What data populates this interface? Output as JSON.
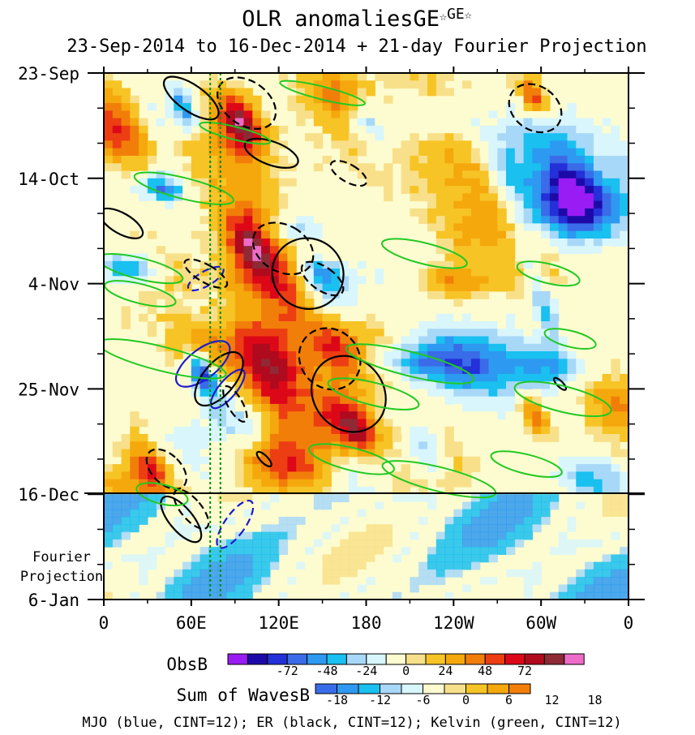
{
  "chart_data": {
    "type": "heatmap",
    "title": "OLR anomaliesGE",
    "title_sup": "GE",
    "star": "☆",
    "subtitle": "23-Sep-2014 to 16-Dec-2014 + 21-day Fourier Projection",
    "x_ticks": [
      {
        "lon": 0,
        "label": "0"
      },
      {
        "lon": 60,
        "label": "60E"
      },
      {
        "lon": 120,
        "label": "120E"
      },
      {
        "lon": 180,
        "label": "180"
      },
      {
        "lon": 240,
        "label": "120W"
      },
      {
        "lon": 300,
        "label": "60W"
      },
      {
        "lon": 360,
        "label": "0"
      }
    ],
    "x_range": [
      0,
      360
    ],
    "y_range_days": [
      0,
      105
    ],
    "y_ticks": [
      {
        "day": 0,
        "label": "23-Sep"
      },
      {
        "day": 21,
        "label": "14-Oct"
      },
      {
        "day": 42,
        "label": "4-Nov"
      },
      {
        "day": 63,
        "label": "25-Nov"
      },
      {
        "day": 84,
        "label": "16-Dec"
      },
      {
        "day": 105,
        "label": "6-Jan"
      }
    ],
    "observation_end_day": 84,
    "projection_label_1": "Fourier",
    "projection_label_2": "Projection",
    "reference_lines_lon": [
      73,
      80
    ],
    "legend_obs": {
      "label": "ObsB",
      "ticks": [
        "-72",
        "-48",
        "-24",
        "0",
        "24",
        "48",
        "72"
      ],
      "colors": [
        "#9a1cf5",
        "#1c0aa8",
        "#2430d8",
        "#3a6be8",
        "#2d99f0",
        "#19c0f0",
        "#a8d8f8",
        "#d8f6fc",
        "#fdfcd0",
        "#f8e08a",
        "#f7c426",
        "#f5a80c",
        "#f27e0a",
        "#ec3e12",
        "#dc0818",
        "#b00a1e",
        "#8e2a36",
        "#ec6cc8"
      ]
    },
    "legend_waves": {
      "label": "Sum of WavesB",
      "ticks": [
        "-18",
        "-12",
        "-6",
        "0",
        "6",
        "12",
        "18"
      ],
      "colors": [
        "#3a6be8",
        "#2d99f0",
        "#19c0f0",
        "#a8d8f8",
        "#d8f6fc",
        "#fdfcd0",
        "#f8e08a",
        "#f7c426",
        "#f5a80c",
        "#f27e0a"
      ]
    },
    "contour_note": "MJO (blue, CINT=12); ER (black, CINT=12); Kelvin (green, CINT=12)",
    "series": [
      {
        "name": "MJO",
        "color": "#1a1ad0",
        "contours": [
          {
            "lon": 68,
            "day": 58,
            "rx": 10,
            "ry": 4,
            "rot": 52,
            "dashed": false
          },
          {
            "lon": 85,
            "day": 63,
            "rx": 6,
            "ry": 3,
            "rot": 40,
            "dashed": false
          },
          {
            "lon": 70,
            "day": 41,
            "rx": 5,
            "ry": 2.5,
            "rot": 60,
            "dashed": true
          },
          {
            "lon": 90,
            "day": 90,
            "rx": 7,
            "ry": 3.5,
            "rot": 35,
            "dashed": true
          }
        ]
      },
      {
        "name": "ER",
        "color": "#000000",
        "contours": [
          {
            "lon": 60,
            "day": 5,
            "rx": 9,
            "ry": 4,
            "rot": -55,
            "dashed": false
          },
          {
            "lon": 98,
            "day": 6,
            "rx": 15,
            "ry": 4,
            "rot": -55,
            "dashed": true
          },
          {
            "lon": 115,
            "day": 16,
            "rx": 8,
            "ry": 3.5,
            "rot": -70,
            "dashed": false
          },
          {
            "lon": 168,
            "day": 20,
            "rx": 6,
            "ry": 2.5,
            "rot": -60,
            "dashed": true
          },
          {
            "lon": 12,
            "day": 30,
            "rx": 7,
            "ry": 3,
            "rot": -60,
            "dashed": false
          },
          {
            "lon": 123,
            "day": 35,
            "rx": 16,
            "ry": 4,
            "rot": -60,
            "dashed": true
          },
          {
            "lon": 140,
            "day": 40,
            "rx": 24,
            "ry": 4.5,
            "rot": -52,
            "dashed": false
          },
          {
            "lon": 150,
            "day": 41,
            "rx": 8,
            "ry": 3,
            "rot": -55,
            "dashed": true
          },
          {
            "lon": 70,
            "day": 40,
            "rx": 6,
            "ry": 3,
            "rot": -60,
            "dashed": true
          },
          {
            "lon": 155,
            "day": 57,
            "rx": 20,
            "ry": 4,
            "rot": -45,
            "dashed": true
          },
          {
            "lon": 168,
            "day": 64,
            "rx": 24,
            "ry": 5,
            "rot": -40,
            "dashed": false
          },
          {
            "lon": 79,
            "day": 61,
            "rx": 11,
            "ry": 4,
            "rot": 40,
            "dashed": false
          },
          {
            "lon": 90,
            "day": 66,
            "rx": 5,
            "ry": 2.5,
            "rot": -30,
            "dashed": true
          },
          {
            "lon": 43,
            "day": 79,
            "rx": 10,
            "ry": 3,
            "rot": -45,
            "dashed": true
          },
          {
            "lon": 60,
            "day": 87,
            "rx": 7,
            "ry": 3,
            "rot": -40,
            "dashed": true
          },
          {
            "lon": 53,
            "day": 89,
            "rx": 8,
            "ry": 3.5,
            "rot": -40,
            "dashed": false
          },
          {
            "lon": 110,
            "day": 77,
            "rx": 2.5,
            "ry": 1.2,
            "rot": -45,
            "dashed": false
          },
          {
            "lon": 296,
            "day": 7,
            "rx": 15,
            "ry": 3.5,
            "rot": -55,
            "dashed": true
          },
          {
            "lon": 313,
            "day": 62,
            "rx": 2,
            "ry": 1,
            "rot": -45,
            "dashed": false
          }
        ]
      },
      {
        "name": "Kelvin",
        "color": "#22c822",
        "contours": [
          {
            "lon": 55,
            "day": 23,
            "rx": 35,
            "ry": 1.3,
            "rot": 14,
            "dashed": false
          },
          {
            "lon": 25,
            "day": 39,
            "rx": 30,
            "ry": 1.3,
            "rot": 14,
            "dashed": false
          },
          {
            "lon": 25,
            "day": 44,
            "rx": 25,
            "ry": 1.2,
            "rot": 14,
            "dashed": false
          },
          {
            "lon": 40,
            "day": 57,
            "rx": 45,
            "ry": 1.5,
            "rot": 14,
            "dashed": false
          },
          {
            "lon": 210,
            "day": 58,
            "rx": 45,
            "ry": 1.5,
            "rot": 14,
            "dashed": false
          },
          {
            "lon": 185,
            "day": 64,
            "rx": 32,
            "ry": 1.4,
            "rot": 14,
            "dashed": false
          },
          {
            "lon": 220,
            "day": 36,
            "rx": 30,
            "ry": 1.3,
            "rot": 14,
            "dashed": false
          },
          {
            "lon": 305,
            "day": 40,
            "rx": 22,
            "ry": 1.2,
            "rot": 14,
            "dashed": false
          },
          {
            "lon": 320,
            "day": 53,
            "rx": 18,
            "ry": 1,
            "rot": 14,
            "dashed": false
          },
          {
            "lon": 315,
            "day": 65,
            "rx": 34,
            "ry": 1.6,
            "rot": 14,
            "dashed": false
          },
          {
            "lon": 170,
            "day": 77,
            "rx": 30,
            "ry": 1.4,
            "rot": 14,
            "dashed": false
          },
          {
            "lon": 230,
            "day": 81,
            "rx": 40,
            "ry": 1.5,
            "rot": 14,
            "dashed": false
          },
          {
            "lon": 290,
            "day": 78,
            "rx": 25,
            "ry": 1.2,
            "rot": 14,
            "dashed": false
          },
          {
            "lon": 40,
            "day": 84,
            "rx": 18,
            "ry": 1.2,
            "rot": 14,
            "dashed": false
          },
          {
            "lon": 150,
            "day": 4,
            "rx": 30,
            "ry": 0.8,
            "rot": 14,
            "dashed": false
          },
          {
            "lon": 90,
            "day": 12,
            "rx": 25,
            "ry": 0.8,
            "rot": 14,
            "dashed": false
          }
        ]
      }
    ]
  }
}
